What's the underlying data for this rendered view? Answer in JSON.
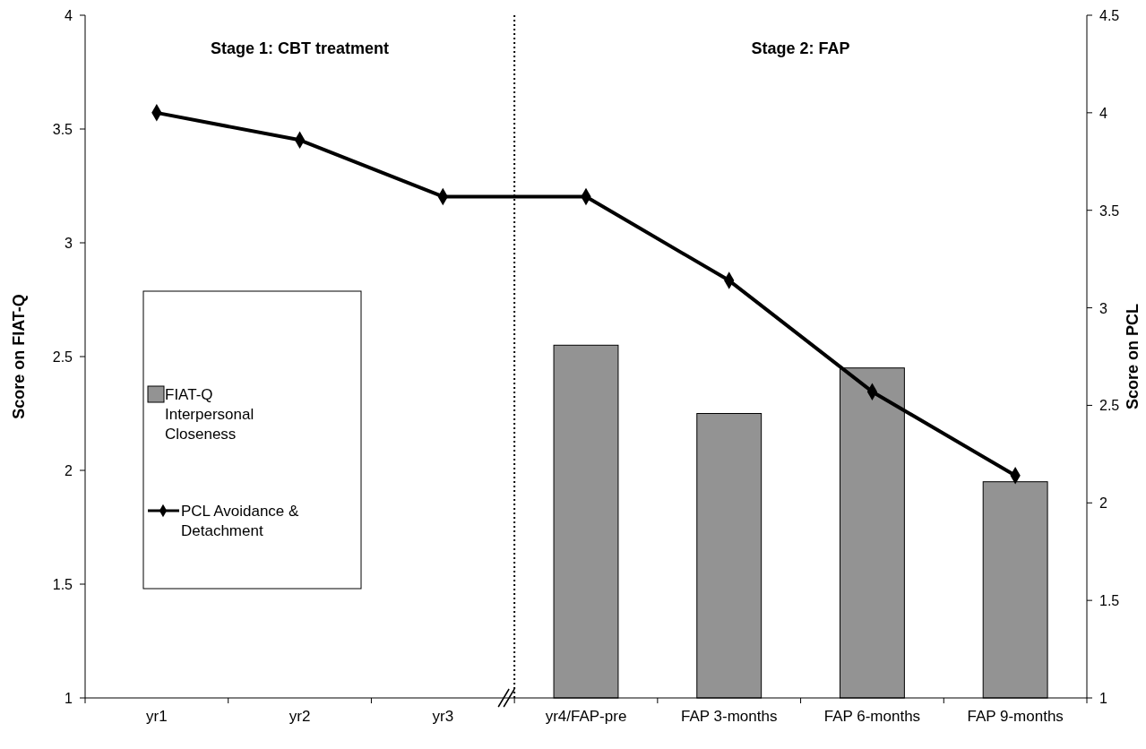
{
  "chart_data": {
    "type": "bar",
    "categories": [
      "yr1",
      "yr2",
      "yr3",
      "yr4/FAP-pre",
      "FAP 3-months",
      "FAP 6-months",
      "FAP 9-months"
    ],
    "series": [
      {
        "name": "FIAT-Q Interpersonal Closeness",
        "color": "#939393",
        "values": [
          null,
          null,
          null,
          2.55,
          2.25,
          2.45,
          1.95
        ]
      },
      {
        "name": "PCL Avoidance & Detachment",
        "type": "line",
        "axis": "y2",
        "color": "#000000",
        "marker": "diamond",
        "values": [
          4.0,
          3.86,
          3.57,
          3.57,
          3.14,
          2.57,
          2.14
        ]
      }
    ],
    "ylabel": "Score on FIAT-Q",
    "y2label": "Score on PCL",
    "ylim": [
      1,
      4
    ],
    "yticks": [
      1,
      1.5,
      2,
      2.5,
      3,
      3.5,
      4
    ],
    "y2lim": [
      1,
      4.5
    ],
    "y2ticks": [
      1,
      1.5,
      2,
      2.5,
      3,
      3.5,
      4,
      4.5
    ],
    "annotations": [
      "Stage 1: CBT treatment",
      "Stage 2: FAP"
    ],
    "legend": "left",
    "grid": false
  }
}
